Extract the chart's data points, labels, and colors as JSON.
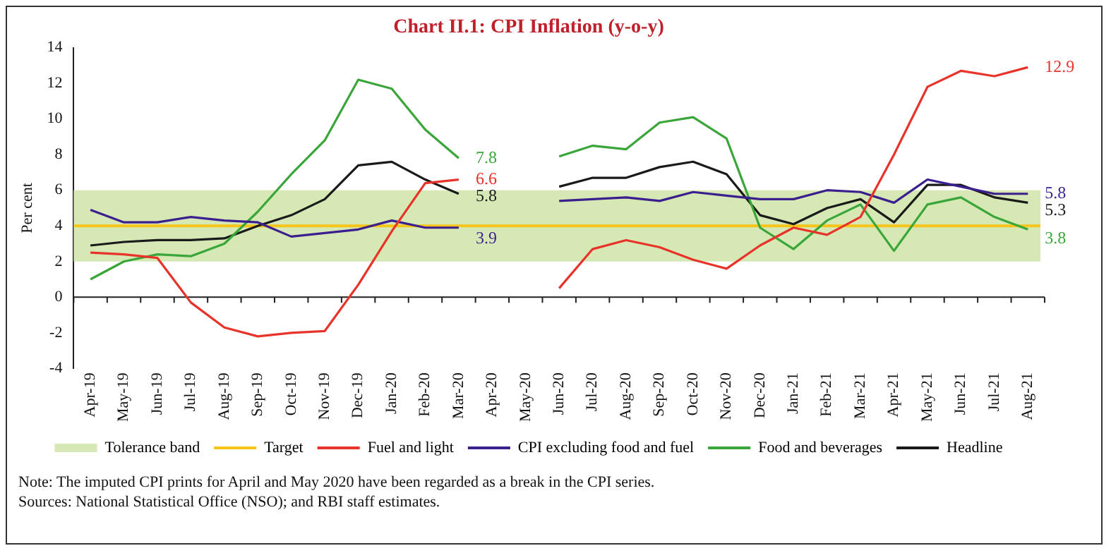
{
  "chart_data": {
    "type": "line",
    "title": "Chart II.1: CPI Inflation (y-o-y)",
    "ylabel": "Per cent",
    "categories": [
      "Apr-19",
      "May-19",
      "Jun-19",
      "Jul-19",
      "Aug-19",
      "Sep-19",
      "Oct-19",
      "Nov-19",
      "Dec-19",
      "Jan-20",
      "Feb-20",
      "Mar-20",
      "Apr-20",
      "May-20",
      "Jun-20",
      "Jul-20",
      "Aug-20",
      "Sep-20",
      "Oct-20",
      "Nov-20",
      "Dec-20",
      "Jan-21",
      "Feb-21",
      "Mar-21",
      "Apr-21",
      "May-21",
      "Jun-21",
      "Jul-21",
      "Aug-21"
    ],
    "series": [
      {
        "name": "Fuel and light",
        "color": "#e8332a",
        "values": [
          2.5,
          2.4,
          2.2,
          -0.3,
          -1.7,
          -2.2,
          -2.0,
          -1.9,
          0.7,
          3.7,
          6.4,
          6.6,
          null,
          null,
          0.5,
          2.7,
          3.2,
          2.8,
          2.1,
          1.6,
          2.9,
          3.9,
          3.5,
          4.5,
          8.0,
          11.8,
          12.7,
          12.4,
          12.9
        ],
        "value_labels": [
          null,
          null,
          null,
          null,
          null,
          null,
          null,
          null,
          null,
          null,
          null,
          "6.6",
          null,
          null,
          null,
          null,
          null,
          null,
          null,
          null,
          null,
          null,
          null,
          null,
          null,
          null,
          null,
          null,
          "12.9"
        ]
      },
      {
        "name": "CPI excluding food and fuel",
        "color": "#3c1f8f",
        "values": [
          4.9,
          4.2,
          4.2,
          4.5,
          4.3,
          4.2,
          3.4,
          3.6,
          3.8,
          4.3,
          3.9,
          3.9,
          null,
          null,
          5.4,
          5.5,
          5.6,
          5.4,
          5.9,
          5.7,
          5.5,
          5.5,
          6.0,
          5.9,
          5.3,
          6.6,
          6.2,
          5.8,
          5.8
        ],
        "value_labels": [
          null,
          null,
          null,
          null,
          null,
          null,
          null,
          null,
          null,
          null,
          null,
          "3.9",
          null,
          null,
          null,
          null,
          null,
          null,
          null,
          null,
          null,
          null,
          null,
          null,
          null,
          null,
          null,
          null,
          "5.8"
        ]
      },
      {
        "name": "Food and beverages",
        "color": "#3aa63a",
        "values": [
          1.0,
          2.0,
          2.4,
          2.3,
          3.0,
          4.8,
          6.9,
          8.8,
          12.2,
          11.7,
          9.4,
          7.8,
          null,
          null,
          7.9,
          8.5,
          8.3,
          9.8,
          10.1,
          8.9,
          3.9,
          2.7,
          4.3,
          5.2,
          2.6,
          5.2,
          5.6,
          4.5,
          3.8
        ],
        "value_labels": [
          null,
          null,
          null,
          null,
          null,
          null,
          null,
          null,
          null,
          null,
          null,
          "7.8",
          null,
          null,
          null,
          null,
          null,
          null,
          null,
          null,
          null,
          null,
          null,
          null,
          null,
          null,
          null,
          null,
          "3.8"
        ]
      },
      {
        "name": "Headline",
        "color": "#1a1a1a",
        "values": [
          2.9,
          3.1,
          3.2,
          3.2,
          3.3,
          4.0,
          4.6,
          5.5,
          7.4,
          7.6,
          6.6,
          5.8,
          null,
          null,
          6.2,
          6.7,
          6.7,
          7.3,
          7.6,
          6.9,
          4.6,
          4.1,
          5.0,
          5.5,
          4.2,
          6.3,
          6.3,
          5.6,
          5.3
        ],
        "value_labels": [
          null,
          null,
          null,
          null,
          null,
          null,
          null,
          null,
          null,
          null,
          null,
          "5.8",
          null,
          null,
          null,
          null,
          null,
          null,
          null,
          null,
          null,
          null,
          null,
          null,
          null,
          null,
          null,
          null,
          "5.3"
        ]
      }
    ],
    "bands": [
      {
        "axis": "y",
        "from": 2,
        "to": 6,
        "label": "Tolerance band",
        "color": "#d6e8b4"
      }
    ],
    "ref_lines": [
      {
        "axis": "y",
        "value": 4,
        "label": "Target",
        "color": "#f5c518"
      }
    ],
    "ylim": [
      -4,
      14
    ],
    "yticks": [
      -4,
      -2,
      0,
      2,
      4,
      6,
      8,
      10,
      12,
      14
    ],
    "grid": false,
    "legend": "bottom",
    "marker": "none",
    "line_style": "solid",
    "annotations": [
      "Note: The imputed CPI prints for April and May 2020 have been regarded as a break in the CPI series.",
      "Sources: National Statistical Office (NSO); and RBI staff estimates."
    ]
  }
}
